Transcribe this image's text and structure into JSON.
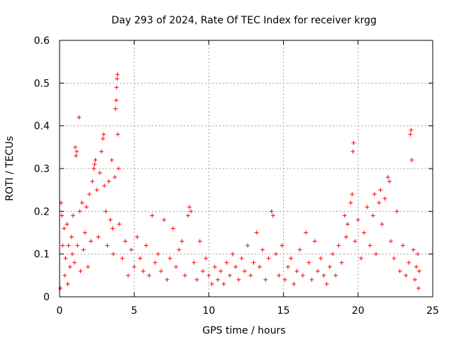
{
  "chart_data": {
    "type": "scatter",
    "title": "Day 293 of 2024, Rate Of TEC Index for receiver krgg",
    "xlabel": "GPS time / hours",
    "ylabel": "ROTI / TECUs",
    "xlim": [
      0,
      25
    ],
    "ylim": [
      0,
      0.6
    ],
    "x_ticks": [
      0,
      5,
      10,
      15,
      20,
      25
    ],
    "x_tick_labels": [
      "0",
      "5",
      "10",
      "15",
      "20",
      "25"
    ],
    "y_ticks": [
      0,
      0.1,
      0.2,
      0.3,
      0.4,
      0.5,
      0.6
    ],
    "y_tick_labels": [
      "0",
      "0.1",
      "0.2",
      "0.3",
      "0.4",
      "0.5",
      "0.6"
    ],
    "grid": true,
    "marker": "plus",
    "color": "#ff0000",
    "points": [
      [
        0.05,
        0.02
      ],
      [
        0.1,
        0.22
      ],
      [
        0.15,
        0.19
      ],
      [
        0.2,
        0.12
      ],
      [
        0.3,
        0.16
      ],
      [
        0.35,
        0.05
      ],
      [
        0.4,
        0.09
      ],
      [
        0.5,
        0.17
      ],
      [
        0.55,
        0.03
      ],
      [
        0.6,
        0.12
      ],
      [
        0.7,
        0.07
      ],
      [
        0.8,
        0.14
      ],
      [
        0.85,
        0.1
      ],
      [
        0.9,
        0.19
      ],
      [
        1.0,
        0.08
      ],
      [
        1.05,
        0.35
      ],
      [
        1.1,
        0.33
      ],
      [
        1.15,
        0.34
      ],
      [
        1.2,
        0.12
      ],
      [
        1.3,
        0.42
      ],
      [
        1.35,
        0.2
      ],
      [
        1.4,
        0.06
      ],
      [
        1.5,
        0.22
      ],
      [
        1.6,
        0.11
      ],
      [
        1.7,
        0.15
      ],
      [
        1.8,
        0.21
      ],
      [
        1.9,
        0.07
      ],
      [
        2.0,
        0.24
      ],
      [
        2.1,
        0.13
      ],
      [
        2.2,
        0.27
      ],
      [
        2.3,
        0.3
      ],
      [
        2.35,
        0.31
      ],
      [
        2.4,
        0.32
      ],
      [
        2.5,
        0.25
      ],
      [
        2.6,
        0.14
      ],
      [
        2.7,
        0.29
      ],
      [
        2.8,
        0.34
      ],
      [
        2.9,
        0.37
      ],
      [
        2.95,
        0.38
      ],
      [
        3.0,
        0.26
      ],
      [
        3.1,
        0.2
      ],
      [
        3.2,
        0.12
      ],
      [
        3.3,
        0.27
      ],
      [
        3.4,
        0.18
      ],
      [
        3.5,
        0.32
      ],
      [
        3.55,
        0.16
      ],
      [
        3.6,
        0.1
      ],
      [
        3.7,
        0.28
      ],
      [
        3.75,
        0.44
      ],
      [
        3.8,
        0.46
      ],
      [
        3.82,
        0.49
      ],
      [
        3.85,
        0.51
      ],
      [
        3.88,
        0.52
      ],
      [
        3.9,
        0.38
      ],
      [
        3.95,
        0.3
      ],
      [
        4.0,
        0.17
      ],
      [
        4.2,
        0.09
      ],
      [
        4.4,
        0.13
      ],
      [
        4.6,
        0.05
      ],
      [
        4.8,
        0.11
      ],
      [
        5.0,
        0.07
      ],
      [
        5.2,
        0.14
      ],
      [
        5.4,
        0.09
      ],
      [
        5.6,
        0.06
      ],
      [
        5.8,
        0.12
      ],
      [
        6.0,
        0.05
      ],
      [
        6.2,
        0.19
      ],
      [
        6.4,
        0.08
      ],
      [
        6.6,
        0.1
      ],
      [
        6.8,
        0.06
      ],
      [
        7.0,
        0.18
      ],
      [
        7.2,
        0.04
      ],
      [
        7.4,
        0.09
      ],
      [
        7.6,
        0.16
      ],
      [
        7.8,
        0.07
      ],
      [
        8.0,
        0.11
      ],
      [
        8.2,
        0.13
      ],
      [
        8.4,
        0.05
      ],
      [
        8.6,
        0.19
      ],
      [
        8.7,
        0.21
      ],
      [
        8.8,
        0.2
      ],
      [
        9.0,
        0.08
      ],
      [
        9.2,
        0.04
      ],
      [
        9.4,
        0.13
      ],
      [
        9.6,
        0.06
      ],
      [
        9.8,
        0.09
      ],
      [
        10.0,
        0.05
      ],
      [
        10.2,
        0.03
      ],
      [
        10.4,
        0.07
      ],
      [
        10.6,
        0.04
      ],
      [
        10.8,
        0.06
      ],
      [
        11.0,
        0.03
      ],
      [
        11.2,
        0.08
      ],
      [
        11.4,
        0.05
      ],
      [
        11.6,
        0.1
      ],
      [
        11.8,
        0.07
      ],
      [
        12.0,
        0.04
      ],
      [
        12.2,
        0.09
      ],
      [
        12.4,
        0.06
      ],
      [
        12.6,
        0.12
      ],
      [
        12.8,
        0.05
      ],
      [
        13.0,
        0.08
      ],
      [
        13.2,
        0.15
      ],
      [
        13.4,
        0.07
      ],
      [
        13.6,
        0.11
      ],
      [
        13.8,
        0.04
      ],
      [
        14.0,
        0.09
      ],
      [
        14.2,
        0.2
      ],
      [
        14.3,
        0.19
      ],
      [
        14.5,
        0.1
      ],
      [
        14.7,
        0.05
      ],
      [
        14.9,
        0.12
      ],
      [
        15.1,
        0.04
      ],
      [
        15.3,
        0.07
      ],
      [
        15.5,
        0.09
      ],
      [
        15.7,
        0.03
      ],
      [
        15.9,
        0.06
      ],
      [
        16.1,
        0.11
      ],
      [
        16.3,
        0.05
      ],
      [
        16.5,
        0.15
      ],
      [
        16.7,
        0.08
      ],
      [
        16.9,
        0.04
      ],
      [
        17.1,
        0.13
      ],
      [
        17.3,
        0.06
      ],
      [
        17.5,
        0.09
      ],
      [
        17.7,
        0.05
      ],
      [
        17.9,
        0.03
      ],
      [
        18.1,
        0.07
      ],
      [
        18.3,
        0.1
      ],
      [
        18.5,
        0.05
      ],
      [
        18.7,
        0.12
      ],
      [
        18.9,
        0.08
      ],
      [
        19.1,
        0.19
      ],
      [
        19.2,
        0.14
      ],
      [
        19.3,
        0.17
      ],
      [
        19.5,
        0.22
      ],
      [
        19.6,
        0.24
      ],
      [
        19.65,
        0.34
      ],
      [
        19.7,
        0.36
      ],
      [
        19.8,
        0.13
      ],
      [
        20.0,
        0.18
      ],
      [
        20.2,
        0.09
      ],
      [
        20.4,
        0.15
      ],
      [
        20.6,
        0.21
      ],
      [
        20.8,
        0.12
      ],
      [
        21.0,
        0.19
      ],
      [
        21.1,
        0.24
      ],
      [
        21.2,
        0.1
      ],
      [
        21.4,
        0.22
      ],
      [
        21.5,
        0.25
      ],
      [
        21.6,
        0.17
      ],
      [
        21.8,
        0.23
      ],
      [
        22.0,
        0.28
      ],
      [
        22.1,
        0.27
      ],
      [
        22.2,
        0.13
      ],
      [
        22.4,
        0.09
      ],
      [
        22.6,
        0.2
      ],
      [
        22.8,
        0.06
      ],
      [
        23.0,
        0.12
      ],
      [
        23.2,
        0.05
      ],
      [
        23.4,
        0.08
      ],
      [
        23.5,
        0.38
      ],
      [
        23.55,
        0.39
      ],
      [
        23.6,
        0.32
      ],
      [
        23.7,
        0.11
      ],
      [
        23.8,
        0.04
      ],
      [
        23.9,
        0.07
      ],
      [
        24.0,
        0.1
      ],
      [
        24.05,
        0.02
      ],
      [
        24.1,
        0.06
      ]
    ]
  }
}
